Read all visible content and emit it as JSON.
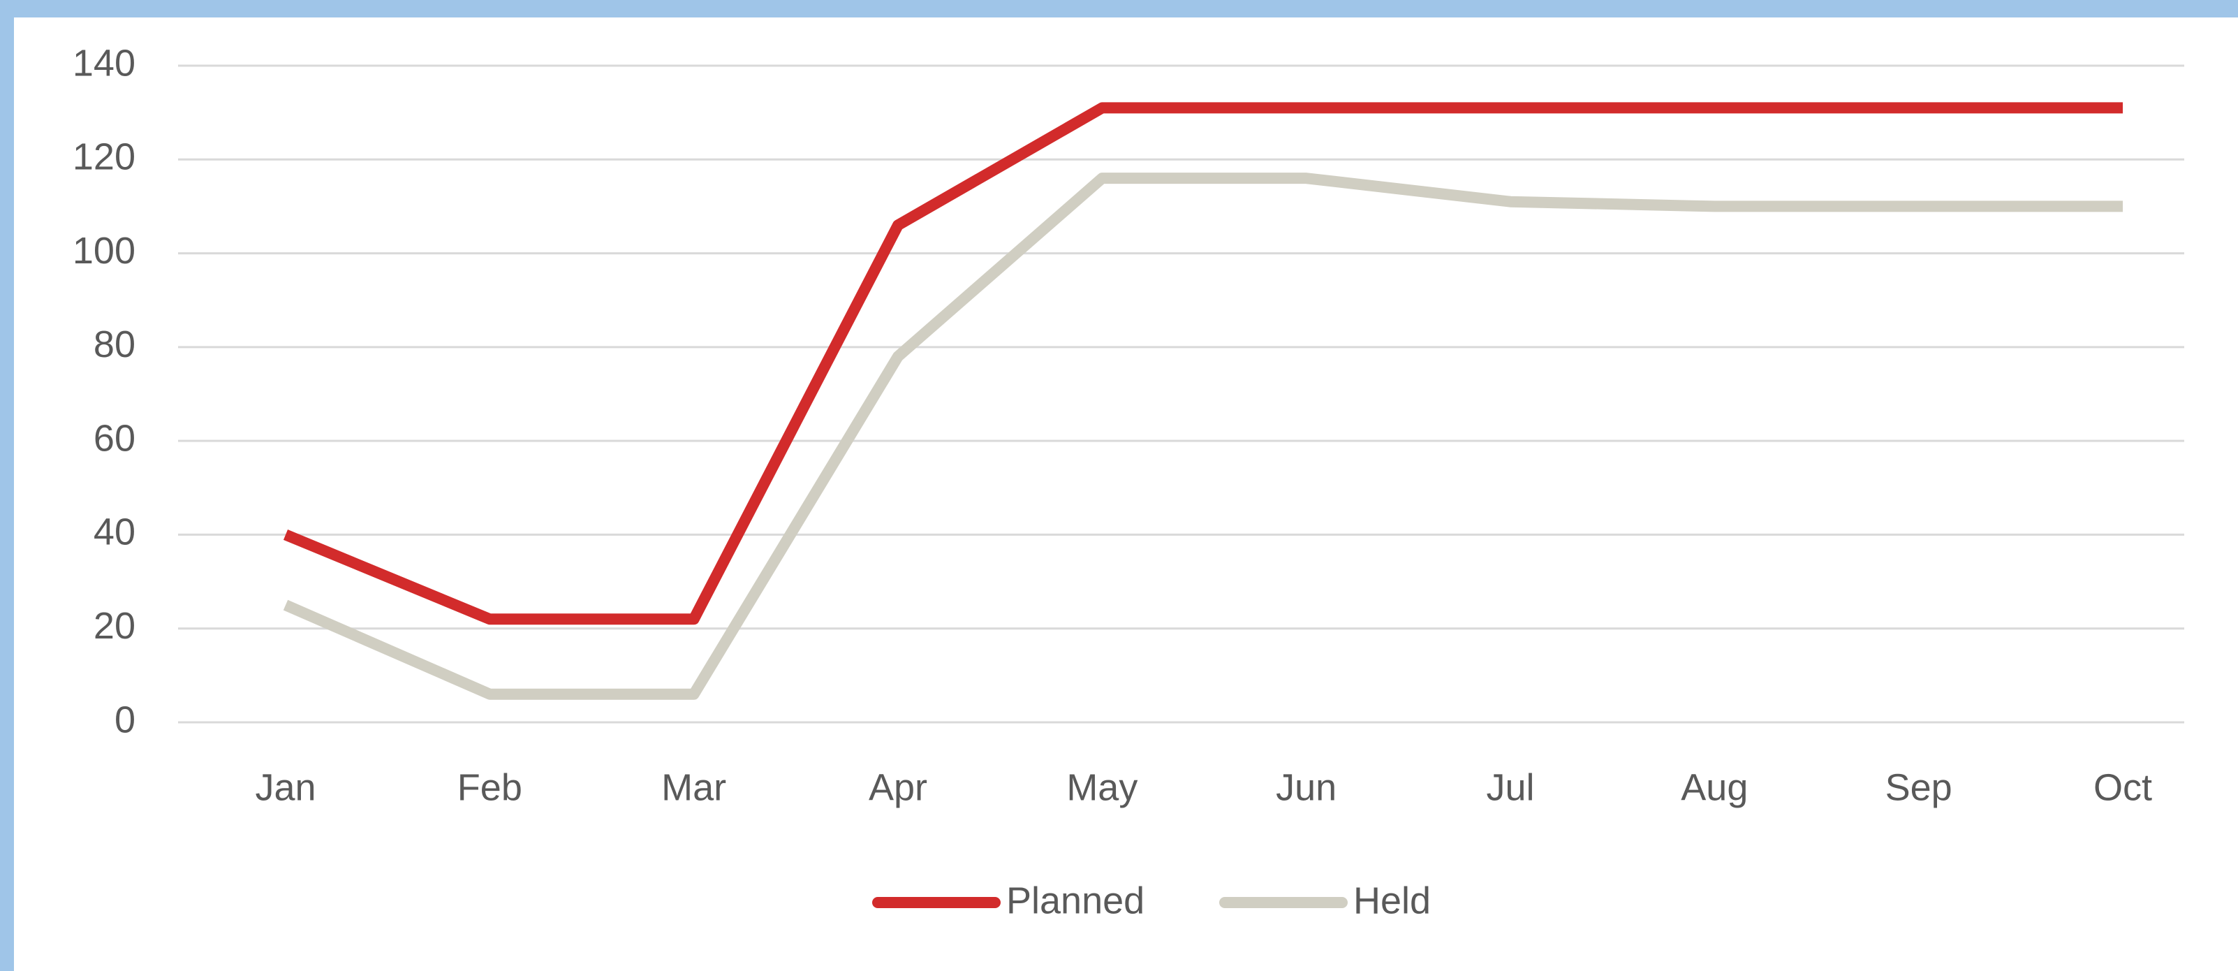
{
  "chart_data": {
    "type": "line",
    "categories": [
      "Jan",
      "Feb",
      "Mar",
      "Apr",
      "May",
      "Jun",
      "Jul",
      "Aug",
      "Sep",
      "Oct"
    ],
    "series": [
      {
        "name": "Planned",
        "color": "#d22b2b",
        "values": [
          40,
          22,
          22,
          106,
          131,
          131,
          131,
          131,
          131,
          131
        ]
      },
      {
        "name": "Held",
        "color": "#d0cec2",
        "values": [
          25,
          6,
          6,
          78,
          116,
          116,
          111,
          110,
          110,
          110
        ]
      }
    ],
    "ylim": [
      0,
      140
    ],
    "yticks": [
      0,
      20,
      40,
      60,
      80,
      100,
      120,
      140
    ],
    "grid": true,
    "legend": "bottom"
  }
}
